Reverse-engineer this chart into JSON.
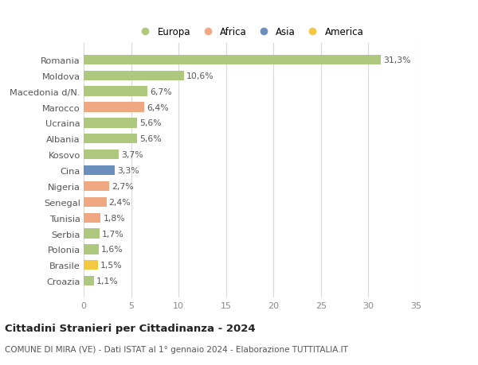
{
  "categories": [
    "Romania",
    "Moldova",
    "Macedonia d/N.",
    "Marocco",
    "Ucraina",
    "Albania",
    "Kosovo",
    "Cina",
    "Nigeria",
    "Senegal",
    "Tunisia",
    "Serbia",
    "Polonia",
    "Brasile",
    "Croazia"
  ],
  "values": [
    31.3,
    10.6,
    6.7,
    6.4,
    5.6,
    5.6,
    3.7,
    3.3,
    2.7,
    2.4,
    1.8,
    1.7,
    1.6,
    1.5,
    1.1
  ],
  "labels": [
    "31,3%",
    "10,6%",
    "6,7%",
    "6,4%",
    "5,6%",
    "5,6%",
    "3,7%",
    "3,3%",
    "2,7%",
    "2,4%",
    "1,8%",
    "1,7%",
    "1,6%",
    "1,5%",
    "1,1%"
  ],
  "colors": [
    "#aec97e",
    "#aec97e",
    "#aec97e",
    "#f0a882",
    "#aec97e",
    "#aec97e",
    "#aec97e",
    "#6a8fbd",
    "#f0a882",
    "#f0a882",
    "#f0a882",
    "#aec97e",
    "#aec97e",
    "#f5c842",
    "#aec97e"
  ],
  "legend": [
    {
      "label": "Europa",
      "color": "#aec97e"
    },
    {
      "label": "Africa",
      "color": "#f0a882"
    },
    {
      "label": "Asia",
      "color": "#6a8fbd"
    },
    {
      "label": "America",
      "color": "#f5c842"
    }
  ],
  "title": "Cittadini Stranieri per Cittadinanza - 2024",
  "subtitle": "COMUNE DI MIRA (VE) - Dati ISTAT al 1° gennaio 2024 - Elaborazione TUTTITALIA.IT",
  "xlim": [
    0,
    35
  ],
  "xticks": [
    0,
    5,
    10,
    15,
    20,
    25,
    30,
    35
  ],
  "background_color": "#ffffff",
  "grid_color": "#d8d8d8",
  "bar_height": 0.62,
  "label_fontsize": 7.8,
  "ytick_fontsize": 8.2,
  "xtick_fontsize": 8.0,
  "legend_fontsize": 8.5,
  "title_fontsize": 9.5,
  "subtitle_fontsize": 7.5
}
